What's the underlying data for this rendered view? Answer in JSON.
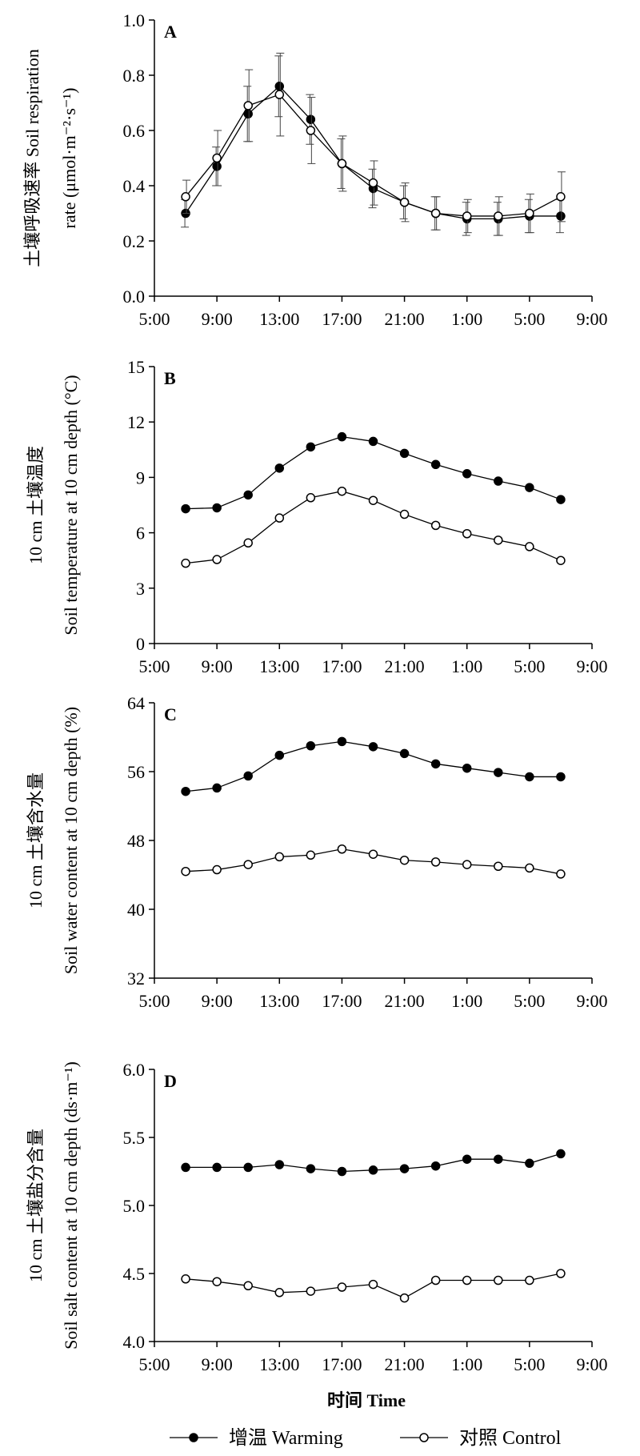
{
  "chart_data": [
    {
      "type": "line",
      "panel_label": "A",
      "ylabel_lines": [
        "土壤呼吸速率 Soil respiration",
        "rate (μmol·m⁻²·s⁻¹)"
      ],
      "ylim": [
        0.0,
        1.0
      ],
      "yticks": [
        0.0,
        0.2,
        0.4,
        0.6,
        0.8,
        1.0
      ],
      "ytick_labels": [
        "0.0",
        "0.2",
        "0.4",
        "0.6",
        "0.8",
        "1.0"
      ],
      "x_axis": "time",
      "error_bars": true,
      "series": [
        {
          "name": "增温 Warming",
          "marker": "filled-circle",
          "x": [
            "7:00",
            "9:00",
            "11:00",
            "13:00",
            "15:00",
            "17:00",
            "19:00",
            "21:00",
            "23:00",
            "1:00",
            "3:00",
            "5:00",
            "7:00"
          ],
          "values": [
            0.3,
            0.47,
            0.66,
            0.76,
            0.64,
            0.48,
            0.39,
            0.34,
            0.3,
            0.28,
            0.28,
            0.29,
            0.29
          ],
          "errors": [
            0.05,
            0.07,
            0.1,
            0.11,
            0.09,
            0.09,
            0.07,
            0.06,
            0.06,
            0.06,
            0.06,
            0.06,
            0.06
          ]
        },
        {
          "name": "对照 Control",
          "marker": "open-circle",
          "x": [
            "7:00",
            "9:00",
            "11:00",
            "13:00",
            "15:00",
            "17:00",
            "19:00",
            "21:00",
            "23:00",
            "1:00",
            "3:00",
            "5:00",
            "7:00"
          ],
          "values": [
            0.36,
            0.5,
            0.69,
            0.73,
            0.6,
            0.48,
            0.41,
            0.34,
            0.3,
            0.29,
            0.29,
            0.3,
            0.36
          ],
          "errors": [
            0.06,
            0.1,
            0.13,
            0.15,
            0.12,
            0.1,
            0.08,
            0.07,
            0.06,
            0.06,
            0.07,
            0.07,
            0.09
          ]
        }
      ]
    },
    {
      "type": "line",
      "panel_label": "B",
      "ylabel_lines": [
        "10 cm 土壤温度",
        "Soil temperature at 10 cm depth (°C)"
      ],
      "ylim": [
        0,
        15
      ],
      "yticks": [
        0,
        3,
        6,
        9,
        12,
        15
      ],
      "ytick_labels": [
        "0",
        "3",
        "6",
        "9",
        "12",
        "15"
      ],
      "x_axis": "time",
      "error_bars": false,
      "series": [
        {
          "name": "增温 Warming",
          "marker": "filled-circle",
          "values": [
            7.3,
            7.35,
            8.05,
            9.5,
            10.65,
            11.2,
            10.95,
            10.3,
            9.7,
            9.2,
            8.8,
            8.45,
            7.8
          ]
        },
        {
          "name": "对照 Control",
          "marker": "open-circle",
          "values": [
            4.35,
            4.55,
            5.45,
            6.8,
            7.9,
            8.25,
            7.75,
            7.0,
            6.4,
            5.95,
            5.6,
            5.25,
            4.5
          ]
        }
      ]
    },
    {
      "type": "line",
      "panel_label": "C",
      "ylabel_lines": [
        "10 cm 土壤含水量",
        "Soil water content at 10 cm depth (%)"
      ],
      "ylim": [
        32,
        64
      ],
      "yticks": [
        32,
        40,
        48,
        56,
        64
      ],
      "ytick_labels": [
        "32",
        "40",
        "48",
        "56",
        "64"
      ],
      "x_axis": "time",
      "error_bars": false,
      "series": [
        {
          "name": "增温 Warming",
          "marker": "filled-circle",
          "values": [
            53.7,
            54.1,
            55.5,
            57.9,
            59.0,
            59.5,
            58.9,
            58.1,
            56.9,
            56.4,
            55.9,
            55.4,
            55.4
          ]
        },
        {
          "name": "对照 Control",
          "marker": "open-circle",
          "values": [
            44.4,
            44.6,
            45.2,
            46.1,
            46.3,
            47.0,
            46.4,
            45.7,
            45.5,
            45.2,
            45.0,
            44.8,
            44.1
          ]
        }
      ]
    },
    {
      "type": "line",
      "panel_label": "D",
      "ylabel_lines": [
        "10 cm 土壤盐分含量",
        "Soil salt content at 10 cm depth (ds·m⁻¹)"
      ],
      "ylim": [
        4.0,
        6.0
      ],
      "yticks": [
        4.0,
        4.5,
        5.0,
        5.5,
        6.0
      ],
      "ytick_labels": [
        "4.0",
        "4.5",
        "5.0",
        "5.5",
        "6.0"
      ],
      "x_axis": "time",
      "error_bars": false,
      "series": [
        {
          "name": "增温 Warming",
          "marker": "filled-circle",
          "values": [
            5.28,
            5.28,
            5.28,
            5.3,
            5.27,
            5.25,
            5.26,
            5.27,
            5.29,
            5.34,
            5.34,
            5.31,
            5.38
          ]
        },
        {
          "name": "对照 Control",
          "marker": "open-circle",
          "values": [
            4.46,
            4.44,
            4.41,
            4.36,
            4.37,
            4.4,
            4.42,
            4.32,
            4.45,
            4.45,
            4.45,
            4.45,
            4.5
          ]
        }
      ]
    }
  ],
  "x_ticks": [
    "5:00",
    "9:00",
    "13:00",
    "17:00",
    "21:00",
    "1:00",
    "5:00",
    "9:00"
  ],
  "x_range_hours": [
    0,
    28
  ],
  "x_points_hours": [
    2,
    4,
    6,
    8,
    10,
    12,
    14,
    16,
    18,
    20,
    22,
    24,
    26
  ],
  "xlabel": "时间 Time",
  "legend": [
    {
      "label": "增温 Warming",
      "marker": "filled-circle"
    },
    {
      "label": "对照 Control",
      "marker": "open-circle"
    }
  ]
}
